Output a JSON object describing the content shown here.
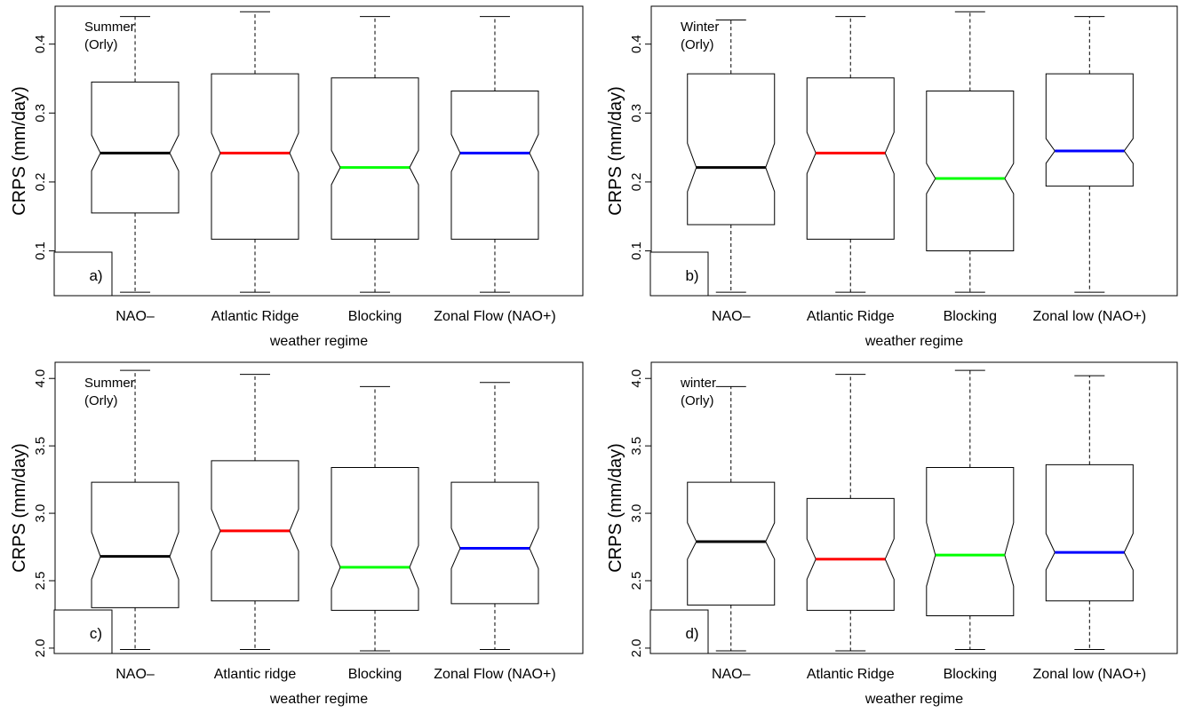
{
  "chart_data": [
    {
      "type": "boxplot",
      "panel_label": "a)",
      "annotation": [
        "Summer",
        "(Orly)"
      ],
      "xlabel": "weather regime",
      "ylabel": "CRPS (mm/day)",
      "ylim": [
        0.035,
        0.455
      ],
      "yticks": [
        0.1,
        0.2,
        0.3,
        0.4
      ],
      "ytick_labels": [
        "0.1",
        "0.2",
        "0.3",
        "0.4"
      ],
      "categories": [
        "NAO–",
        "Atlantic Ridge",
        "Blocking",
        "Zonal Flow (NAO+)"
      ],
      "median_colors": [
        "#000000",
        "#ff0000",
        "#00ff00",
        "#0000ff"
      ],
      "boxes": [
        {
          "whisker_low": 0.04,
          "q1": 0.155,
          "notch_low": 0.216,
          "median": 0.242,
          "notch_high": 0.268,
          "q3": 0.345,
          "whisker_high": 0.44
        },
        {
          "whisker_low": 0.04,
          "q1": 0.117,
          "notch_low": 0.213,
          "median": 0.242,
          "notch_high": 0.271,
          "q3": 0.357,
          "whisker_high": 0.447
        },
        {
          "whisker_low": 0.04,
          "q1": 0.117,
          "notch_low": 0.196,
          "median": 0.221,
          "notch_high": 0.246,
          "q3": 0.351,
          "whisker_high": 0.44
        },
        {
          "whisker_low": 0.04,
          "q1": 0.117,
          "notch_low": 0.215,
          "median": 0.242,
          "notch_high": 0.269,
          "q3": 0.332,
          "whisker_high": 0.44
        }
      ]
    },
    {
      "type": "boxplot",
      "panel_label": "b)",
      "annotation": [
        "Winter",
        "(Orly)"
      ],
      "xlabel": "weather regime",
      "ylabel": "CRPS (mm/day)",
      "ylim": [
        0.035,
        0.455
      ],
      "yticks": [
        0.1,
        0.2,
        0.3,
        0.4
      ],
      "ytick_labels": [
        "0.1",
        "0.2",
        "0.3",
        "0.4"
      ],
      "categories": [
        "NAO–",
        "Atlantic Ridge",
        "Blocking",
        "Zonal low (NAO+)"
      ],
      "median_colors": [
        "#000000",
        "#ff0000",
        "#00ff00",
        "#0000ff"
      ],
      "boxes": [
        {
          "whisker_low": 0.04,
          "q1": 0.138,
          "notch_low": 0.186,
          "median": 0.221,
          "notch_high": 0.256,
          "q3": 0.357,
          "whisker_high": 0.435
        },
        {
          "whisker_low": 0.04,
          "q1": 0.117,
          "notch_low": 0.212,
          "median": 0.242,
          "notch_high": 0.272,
          "q3": 0.351,
          "whisker_high": 0.44
        },
        {
          "whisker_low": 0.04,
          "q1": 0.1,
          "notch_low": 0.183,
          "median": 0.205,
          "notch_high": 0.227,
          "q3": 0.332,
          "whisker_high": 0.447
        },
        {
          "whisker_low": 0.04,
          "q1": 0.194,
          "notch_low": 0.227,
          "median": 0.245,
          "notch_high": 0.263,
          "q3": 0.357,
          "whisker_high": 0.44
        }
      ]
    },
    {
      "type": "boxplot",
      "panel_label": "c)",
      "annotation": [
        "Summer",
        "(Orly)"
      ],
      "xlabel": "weather regime",
      "ylabel": "CRPS (mm/day)",
      "ylim": [
        1.96,
        4.12
      ],
      "yticks": [
        2.0,
        2.5,
        3.0,
        3.5,
        4.0
      ],
      "ytick_labels": [
        "2.0",
        "2.5",
        "3.0",
        "3.5",
        "4.0"
      ],
      "categories": [
        "NAO–",
        "Atlantic ridge",
        "Blocking",
        "Zonal Flow (NAO+)"
      ],
      "median_colors": [
        "#000000",
        "#ff0000",
        "#00ff00",
        "#0000ff"
      ],
      "boxes": [
        {
          "whisker_low": 1.99,
          "q1": 2.3,
          "notch_low": 2.51,
          "median": 2.68,
          "notch_high": 2.86,
          "q3": 3.23,
          "whisker_high": 4.06
        },
        {
          "whisker_low": 1.99,
          "q1": 2.35,
          "notch_low": 2.72,
          "median": 2.87,
          "notch_high": 3.03,
          "q3": 3.39,
          "whisker_high": 4.03
        },
        {
          "whisker_low": 1.98,
          "q1": 2.28,
          "notch_low": 2.44,
          "median": 2.6,
          "notch_high": 2.76,
          "q3": 3.34,
          "whisker_high": 3.94
        },
        {
          "whisker_low": 1.99,
          "q1": 2.33,
          "notch_low": 2.59,
          "median": 2.74,
          "notch_high": 2.89,
          "q3": 3.23,
          "whisker_high": 3.97
        }
      ]
    },
    {
      "type": "boxplot",
      "panel_label": "d)",
      "annotation": [
        "winter",
        "(Orly)"
      ],
      "xlabel": "weather regime",
      "ylabel": "CRPS (mm/day)",
      "ylim": [
        1.96,
        4.12
      ],
      "yticks": [
        2.0,
        2.5,
        3.0,
        3.5,
        4.0
      ],
      "ytick_labels": [
        "2.0",
        "2.5",
        "3.0",
        "3.5",
        "4.0"
      ],
      "categories": [
        "NAO–",
        "Atlantic Ridge",
        "Blocking",
        "Zonal low (NAO+)"
      ],
      "median_colors": [
        "#000000",
        "#ff0000",
        "#00ff00",
        "#0000ff"
      ],
      "boxes": [
        {
          "whisker_low": 1.98,
          "q1": 2.32,
          "notch_low": 2.66,
          "median": 2.79,
          "notch_high": 2.93,
          "q3": 3.23,
          "whisker_high": 3.94
        },
        {
          "whisker_low": 1.98,
          "q1": 2.28,
          "notch_low": 2.51,
          "median": 2.66,
          "notch_high": 2.81,
          "q3": 3.11,
          "whisker_high": 4.03
        },
        {
          "whisker_low": 1.99,
          "q1": 2.24,
          "notch_low": 2.46,
          "median": 2.69,
          "notch_high": 2.93,
          "q3": 3.34,
          "whisker_high": 4.06
        },
        {
          "whisker_low": 1.99,
          "q1": 2.35,
          "notch_low": 2.58,
          "median": 2.71,
          "notch_high": 2.85,
          "q3": 3.36,
          "whisker_high": 4.02
        }
      ]
    }
  ]
}
